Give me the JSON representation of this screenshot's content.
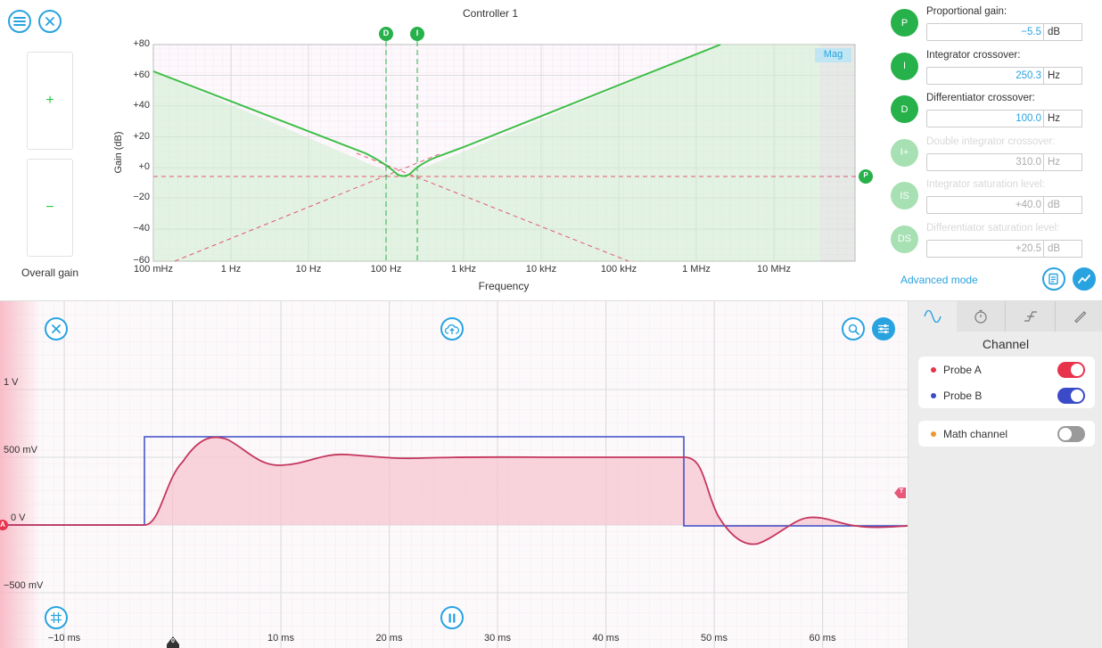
{
  "header": {
    "title": "Controller 1"
  },
  "overall_gain": {
    "plus": "+",
    "minus": "−",
    "label": "Overall gain"
  },
  "bode": {
    "y_axis_label": "Gain (dB)",
    "y_ticks": [
      "+80",
      "+60",
      "+40",
      "+20",
      "+0",
      "−20",
      "−40",
      "−60"
    ],
    "x_ticks": [
      "100 mHz",
      "1 Hz",
      "10 Hz",
      "100 Hz",
      "1 kHz",
      "10 kHz",
      "100 kHz",
      "1 MHz",
      "10 MHz"
    ],
    "x_axis_label": "Frequency",
    "mag_badge": "Mag",
    "marker_d": "D",
    "marker_i": "I",
    "marker_p": "P"
  },
  "params": [
    {
      "icon": "P",
      "label": "Proportional gain:",
      "value": "−5.5",
      "unit": "dB",
      "enabled": true
    },
    {
      "icon": "I",
      "label": "Integrator crossover:",
      "value": "250.3",
      "unit": "Hz",
      "enabled": true
    },
    {
      "icon": "D",
      "label": "Differentiator crossover:",
      "value": "100.0",
      "unit": "Hz",
      "enabled": true
    },
    {
      "icon": "I+",
      "label": "Double integrator crossover:",
      "value": "310.0",
      "unit": "Hz",
      "enabled": false
    },
    {
      "icon": "IS",
      "label": "Integrator saturation level:",
      "value": "+40.0",
      "unit": "dB",
      "enabled": false
    },
    {
      "icon": "DS",
      "label": "Differentiator saturation level:",
      "value": "+20.5",
      "unit": "dB",
      "enabled": false
    }
  ],
  "advanced_mode": "Advanced mode",
  "scope": {
    "y_ticks": [
      "1 V",
      "500 mV",
      "0 V",
      "−500 mV"
    ],
    "x_ticks": [
      "−10 ms",
      "10 ms",
      "20 ms",
      "30 ms",
      "40 ms",
      "50 ms",
      "60 ms"
    ],
    "marker_a": "A",
    "marker_t": "T",
    "marker_zero": "0"
  },
  "side_panel": {
    "title": "Channel",
    "channels": [
      {
        "name": "Probe A",
        "color": "#e8334d",
        "on": true
      },
      {
        "name": "Probe B",
        "color": "#3b4bc8",
        "on": true
      }
    ],
    "math": {
      "name": "Math channel",
      "color": "#f0962a",
      "on": false
    }
  },
  "colors": {
    "accent": "#29a3e0",
    "green": "#27b14a",
    "probe_a": "#e8334d",
    "probe_b": "#3b4bc8"
  }
}
